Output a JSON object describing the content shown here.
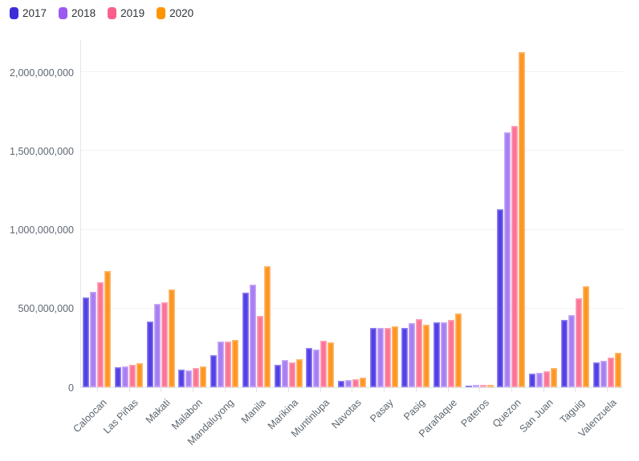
{
  "chart_data": {
    "type": "bar",
    "title": "",
    "xlabel": "",
    "ylabel": "",
    "grid": true,
    "legend_position": "top-left",
    "background": "#ffffff",
    "categories": [
      "Caloocan",
      "Las Piñas",
      "Makati",
      "Malabon",
      "Mandaluyong",
      "Manila",
      "Marikina",
      "Muntinlupa",
      "Navotas",
      "Pasay",
      "Pasig",
      "Parañaque",
      "Pateros",
      "Quezon",
      "San Juan",
      "Taguig",
      "Valenzuela"
    ],
    "series": [
      {
        "name": "2017",
        "color": "#3f2cd9",
        "fill": "#5340e6",
        "values": [
          570000000,
          128000000,
          417000000,
          112000000,
          206000000,
          600000000,
          142000000,
          249000000,
          40000000,
          378000000,
          375000000,
          414000000,
          12000000,
          1128000000,
          85000000,
          429000000,
          160000000
        ]
      },
      {
        "name": "2018",
        "color": "#9b59f2",
        "fill": "#a87ef2",
        "values": [
          605000000,
          134000000,
          530000000,
          108000000,
          290000000,
          653000000,
          173000000,
          238000000,
          45000000,
          379000000,
          408000000,
          411000000,
          13000000,
          1618000000,
          92000000,
          456000000,
          166000000
        ]
      },
      {
        "name": "2019",
        "color": "#f9608c",
        "fill": "#fb7495",
        "values": [
          667000000,
          142000000,
          541000000,
          120000000,
          291000000,
          453000000,
          158000000,
          294000000,
          52000000,
          376000000,
          433000000,
          428000000,
          13000000,
          1660000000,
          103000000,
          566000000,
          188000000
        ]
      },
      {
        "name": "2020",
        "color": "#fe9500",
        "fill": "#fd9522",
        "values": [
          737000000,
          154000000,
          622000000,
          132000000,
          299000000,
          770000000,
          178000000,
          285000000,
          62000000,
          385000000,
          396000000,
          466000000,
          14000000,
          2129000000,
          122000000,
          643000000,
          219000000
        ]
      }
    ],
    "yticks": [
      {
        "label": "0",
        "value": 0
      },
      {
        "label": "500,000,000",
        "value": 500000000
      },
      {
        "label": "1,000,000,000",
        "value": 1000000000
      },
      {
        "label": "1,500,000,000",
        "value": 1500000000
      },
      {
        "label": "2,000,000,000",
        "value": 2000000000
      }
    ],
    "ylim": [
      0,
      2208000000
    ]
  }
}
